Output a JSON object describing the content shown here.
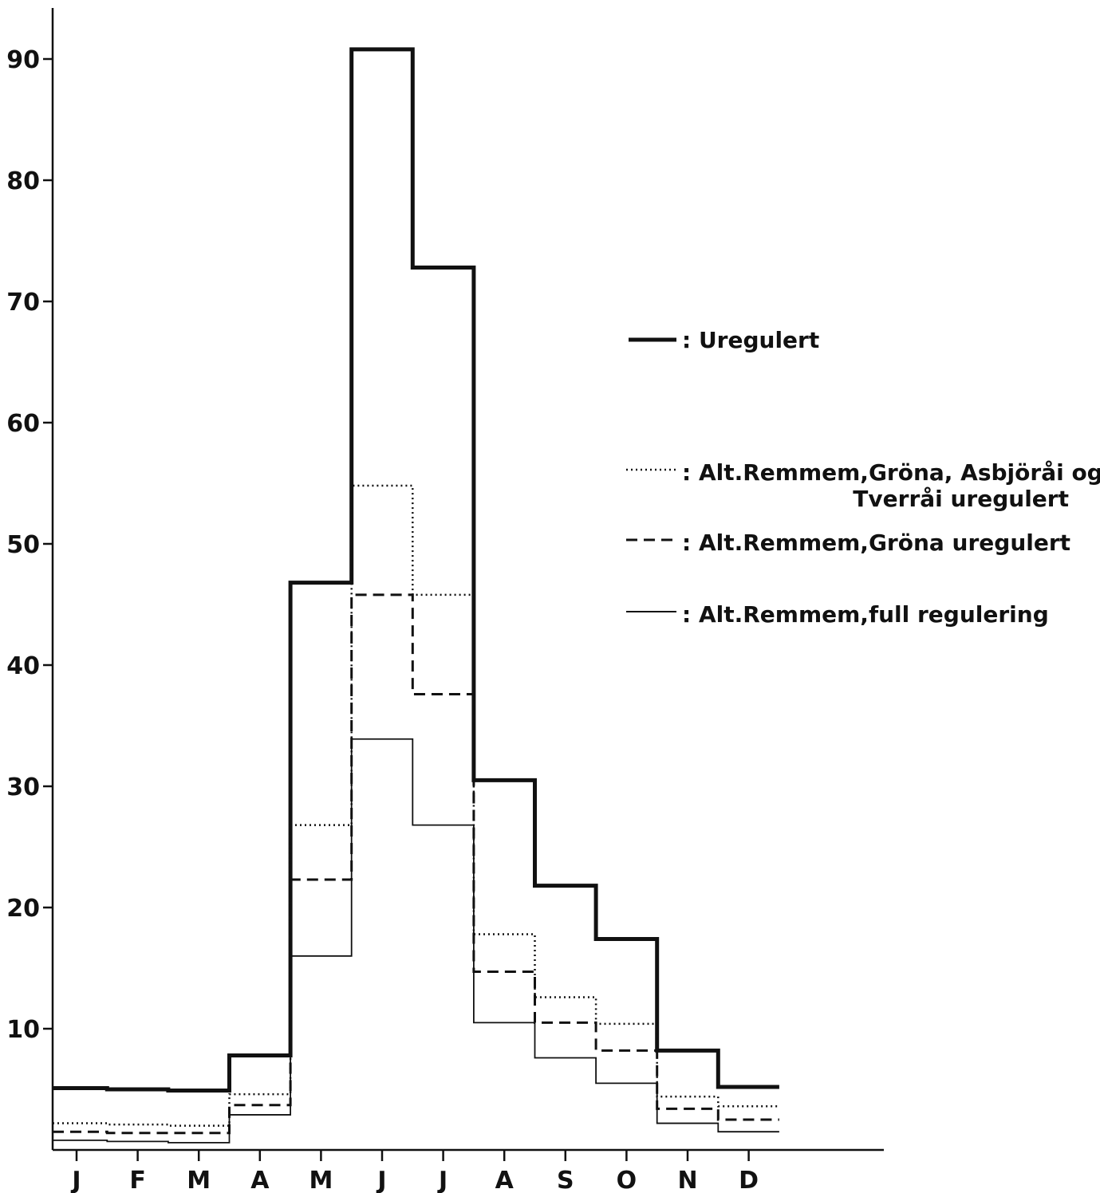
{
  "chart_data": {
    "type": "line",
    "step": true,
    "categories": [
      "J",
      "F",
      "M",
      "A",
      "M",
      "J",
      "J",
      "A",
      "S",
      "O",
      "N",
      "D"
    ],
    "ylim": [
      0,
      95
    ],
    "yticks": [
      10,
      20,
      30,
      40,
      50,
      60,
      70,
      80,
      90
    ],
    "title": "",
    "xlabel": "",
    "ylabel": "",
    "grid": false,
    "legend_position": "right",
    "series": [
      {
        "name": "Uregulert",
        "style": "thick-solid",
        "values": [
          5.1,
          5.0,
          4.9,
          7.8,
          46.8,
          90.8,
          72.8,
          30.5,
          21.8,
          17.4,
          8.2,
          5.2
        ]
      },
      {
        "name": "Alt.Remmem,Gröna, Asbjöråi og Tverråi uregulert",
        "style": "dotted",
        "values": [
          2.2,
          2.1,
          2.0,
          4.6,
          26.8,
          54.8,
          45.8,
          17.8,
          12.6,
          10.4,
          4.4,
          3.6
        ]
      },
      {
        "name": "Alt.Remmem,Gröna uregulert",
        "style": "dashed",
        "values": [
          1.5,
          1.4,
          1.4,
          3.7,
          22.3,
          45.8,
          37.6,
          14.7,
          10.5,
          8.2,
          3.4,
          2.5
        ]
      },
      {
        "name": "Alt.Remmem,full regulering",
        "style": "thin-solid",
        "values": [
          0.8,
          0.7,
          0.6,
          2.9,
          16.0,
          33.9,
          26.8,
          10.5,
          7.6,
          5.5,
          2.2,
          1.5
        ]
      }
    ]
  },
  "legend": {
    "items": [
      {
        "label": ": Uregulert"
      },
      {
        "label": ": Alt.Remmem,Gröna, Asbjöråi og",
        "label2": "Tverråi uregulert"
      },
      {
        "label": ": Alt.Remmem,Gröna uregulert"
      },
      {
        "label": ": Alt.Remmem,full regulering"
      }
    ]
  }
}
